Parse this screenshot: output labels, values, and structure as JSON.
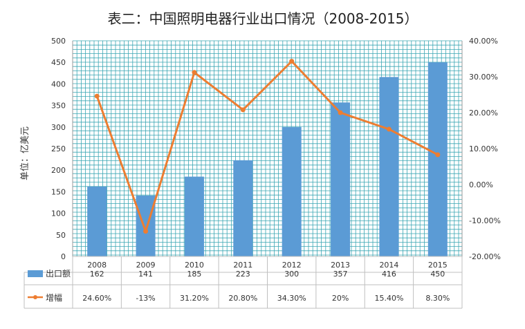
{
  "chart_data": {
    "type": "bar",
    "title": "表二：中国照明电器行业出口情况（2008-2015）",
    "ylabel": "单位：亿美元",
    "categories": [
      "2008",
      "2009",
      "2010",
      "2011",
      "2012",
      "2013",
      "2014",
      "2015"
    ],
    "ylim": [
      0,
      500
    ],
    "y_ticks": [
      "0",
      "50",
      "100",
      "150",
      "200",
      "250",
      "300",
      "350",
      "400",
      "450",
      "500"
    ],
    "y2lim": [
      -20,
      40
    ],
    "y2_ticks": [
      "-20.00%",
      "-10.00%",
      "0.00%",
      "10.00%",
      "20.00%",
      "30.00%",
      "40.00%"
    ],
    "series": [
      {
        "name": "出口额",
        "type": "bar",
        "axis": "left",
        "color": "#5b9bd5",
        "values": [
          162,
          141,
          185,
          223,
          300,
          357,
          416,
          450
        ],
        "labels": [
          "162",
          "141",
          "185",
          "223",
          "300",
          "357",
          "416",
          "450"
        ]
      },
      {
        "name": "增幅",
        "type": "line",
        "axis": "right",
        "color": "#ed7d31",
        "values": [
          24.6,
          -13,
          31.2,
          20.8,
          34.3,
          20,
          15.4,
          8.3
        ],
        "labels": [
          "24.60%",
          "-13%",
          "31.20%",
          "20.80%",
          "34.30%",
          "20%",
          "15.40%",
          "8.30%"
        ]
      }
    ],
    "grid": true,
    "legend": "data-table-below"
  }
}
